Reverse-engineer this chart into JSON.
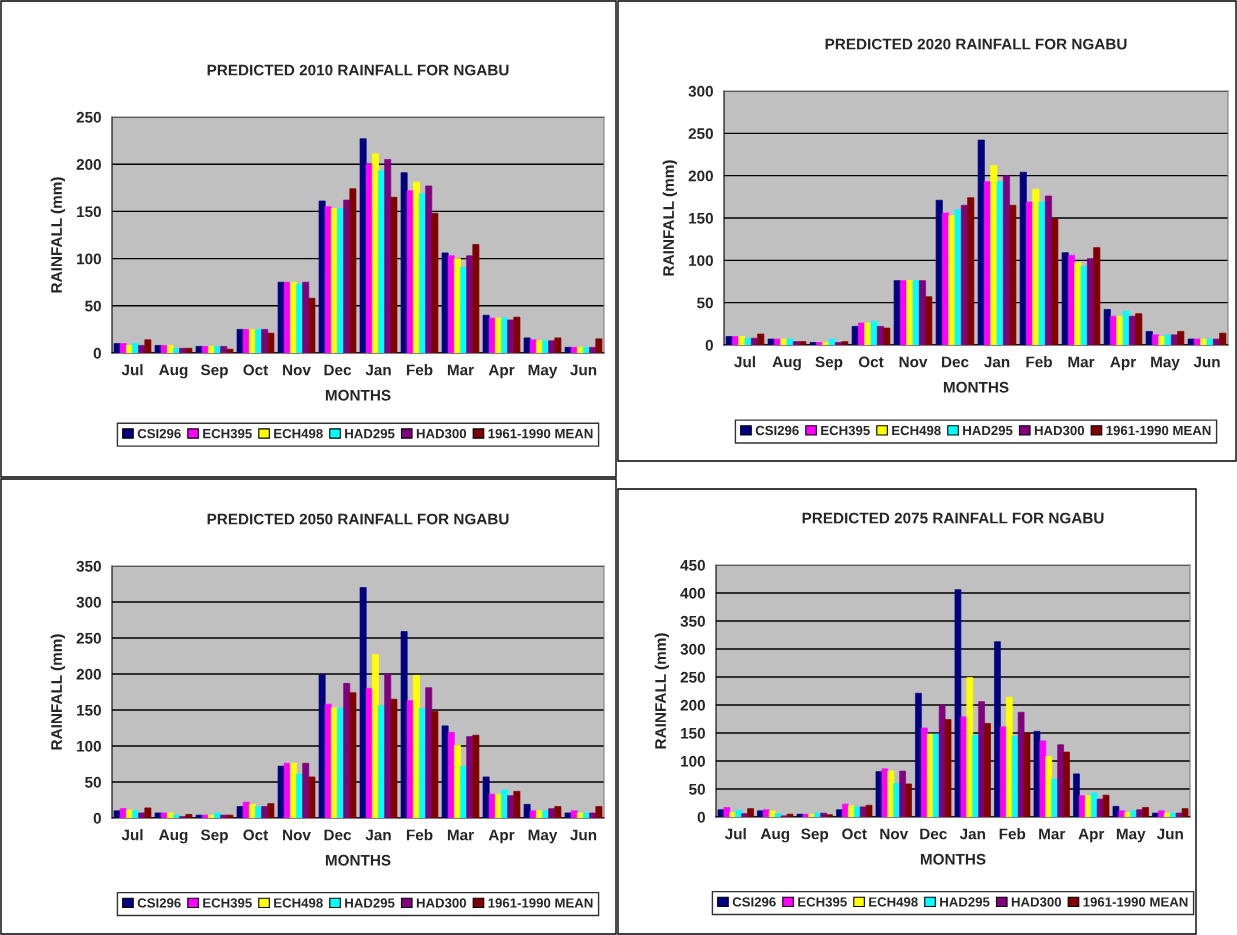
{
  "chart_data": [
    {
      "type": "bar",
      "title": "PREDICTED 2010 RAINFALL FOR NGABU",
      "xlabel": "MONTHS",
      "ylabel": "RAINFALL (mm)",
      "categories": [
        "Jul",
        "Aug",
        "Sep",
        "Oct",
        "Nov",
        "Dec",
        "Jan",
        "Feb",
        "Mar",
        "Apr",
        "May",
        "Jun"
      ],
      "ylim": [
        0,
        250
      ],
      "yticks": [
        0,
        50,
        100,
        150,
        200,
        250
      ],
      "grid": "y",
      "legend": "bottom",
      "series": [
        {
          "name": "CSI296",
          "color": "#000080",
          "values": [
            10,
            8,
            7,
            25,
            75,
            161,
            227,
            191,
            106,
            40,
            16,
            6
          ]
        },
        {
          "name": "ECH395",
          "color": "#ff00ff",
          "values": [
            10,
            8,
            7,
            25,
            75,
            155,
            200,
            172,
            103,
            37,
            14,
            6
          ]
        },
        {
          "name": "ECH498",
          "color": "#ffff00",
          "values": [
            8,
            8,
            7,
            25,
            75,
            153,
            211,
            181,
            100,
            37,
            13,
            6
          ]
        },
        {
          "name": "HAD295",
          "color": "#00ffff",
          "values": [
            10,
            5,
            7,
            25,
            73,
            153,
            193,
            169,
            91,
            37,
            13,
            6
          ]
        },
        {
          "name": "HAD300",
          "color": "#800080",
          "values": [
            8,
            5,
            7,
            25,
            75,
            162,
            205,
            177,
            103,
            35,
            13,
            6
          ]
        },
        {
          "name": "1961-1990 MEAN",
          "color": "#800000",
          "values": [
            14,
            5,
            4,
            21,
            58,
            174,
            165,
            148,
            115,
            38,
            16,
            15
          ]
        }
      ]
    },
    {
      "type": "bar",
      "title": "PREDICTED 2020 RAINFALL FOR NGABU",
      "xlabel": "MONTHS",
      "ylabel": "RAINFALL (mm)",
      "categories": [
        "Jul",
        "Aug",
        "Sep",
        "Oct",
        "Nov",
        "Dec",
        "Jan",
        "Feb",
        "Mar",
        "Apr",
        "May",
        "Jun"
      ],
      "ylim": [
        0,
        300
      ],
      "yticks": [
        0,
        50,
        100,
        150,
        200,
        250,
        300
      ],
      "grid": "y",
      "legend": "bottom",
      "series": [
        {
          "name": "CSI296",
          "color": "#000080",
          "values": [
            10,
            7,
            3,
            22,
            76,
            171,
            242,
            204,
            109,
            42,
            16,
            7
          ]
        },
        {
          "name": "ECH395",
          "color": "#ff00ff",
          "values": [
            10,
            7,
            3,
            26,
            76,
            156,
            193,
            169,
            106,
            34,
            12,
            7
          ]
        },
        {
          "name": "ECH498",
          "color": "#ffff00",
          "values": [
            10,
            7,
            3,
            26,
            76,
            153,
            212,
            184,
            97,
            34,
            10,
            7
          ]
        },
        {
          "name": "HAD295",
          "color": "#00ffff",
          "values": [
            8,
            7,
            7,
            28,
            76,
            160,
            193,
            169,
            93,
            40,
            12,
            7
          ]
        },
        {
          "name": "HAD300",
          "color": "#800080",
          "values": [
            8,
            4,
            3,
            22,
            76,
            165,
            200,
            176,
            102,
            34,
            12,
            7
          ]
        },
        {
          "name": "1961-1990 MEAN",
          "color": "#800000",
          "values": [
            13,
            4,
            4,
            20,
            57,
            174,
            165,
            149,
            115,
            37,
            16,
            14
          ]
        }
      ]
    },
    {
      "type": "bar",
      "title": "PREDICTED 2050 RAINFALL FOR NGABU",
      "xlabel": "MONTHS",
      "ylabel": "RAINFALL (mm)",
      "categories": [
        "Jul",
        "Aug",
        "Sep",
        "Oct",
        "Nov",
        "Dec",
        "Jan",
        "Feb",
        "Mar",
        "Apr",
        "May",
        "Jun"
      ],
      "ylim": [
        0,
        350
      ],
      "yticks": [
        0,
        50,
        100,
        150,
        200,
        250,
        300,
        350
      ],
      "grid": "y",
      "legend": "bottom",
      "series": [
        {
          "name": "CSI296",
          "color": "#000080",
          "values": [
            10,
            7,
            4,
            16,
            72,
            199,
            320,
            259,
            128,
            57,
            19,
            7
          ]
        },
        {
          "name": "ECH395",
          "color": "#ff00ff",
          "values": [
            13,
            7,
            4,
            22,
            76,
            158,
            180,
            163,
            119,
            33,
            10,
            10
          ]
        },
        {
          "name": "ECH498",
          "color": "#ffff00",
          "values": [
            11,
            7,
            4,
            19,
            76,
            153,
            227,
            198,
            101,
            33,
            10,
            7
          ]
        },
        {
          "name": "HAD295",
          "color": "#00ffff",
          "values": [
            10,
            4,
            7,
            16,
            61,
            153,
            156,
            152,
            72,
            39,
            10,
            7
          ]
        },
        {
          "name": "HAD300",
          "color": "#800080",
          "values": [
            7,
            2,
            4,
            16,
            76,
            187,
            200,
            181,
            113,
            31,
            13,
            7
          ]
        },
        {
          "name": "1961-1990 MEAN",
          "color": "#800000",
          "values": [
            14,
            5,
            4,
            20,
            57,
            174,
            165,
            148,
            115,
            37,
            16,
            16
          ]
        }
      ]
    },
    {
      "type": "bar",
      "title": "PREDICTED 2075 RAINFALL FOR NGABU",
      "xlabel": "MONTHS",
      "ylabel": "RAINFALL (mm)",
      "categories": [
        "Jul",
        "Aug",
        "Sep",
        "Oct",
        "Nov",
        "Dec",
        "Jan",
        "Feb",
        "Mar",
        "Apr",
        "May",
        "Jun"
      ],
      "ylim": [
        0,
        450
      ],
      "yticks": [
        0,
        50,
        100,
        150,
        200,
        250,
        300,
        350,
        400,
        450
      ],
      "grid": "y",
      "legend": "bottom",
      "series": [
        {
          "name": "CSI296",
          "color": "#000080",
          "values": [
            13,
            11,
            5,
            13,
            81,
            221,
            406,
            313,
            153,
            77,
            19,
            7
          ]
        },
        {
          "name": "ECH395",
          "color": "#ff00ff",
          "values": [
            17,
            13,
            5,
            23,
            86,
            159,
            179,
            161,
            136,
            38,
            11,
            11
          ]
        },
        {
          "name": "ECH498",
          "color": "#ffff00",
          "values": [
            8,
            11,
            5,
            20,
            82,
            148,
            249,
            214,
            108,
            38,
            8,
            7
          ]
        },
        {
          "name": "HAD295",
          "color": "#00ffff",
          "values": [
            12,
            6,
            7,
            18,
            60,
            148,
            146,
            144,
            68,
            43,
            11,
            7
          ]
        },
        {
          "name": "HAD300",
          "color": "#800080",
          "values": [
            6,
            2,
            7,
            18,
            82,
            200,
            206,
            187,
            129,
            32,
            13,
            7
          ]
        },
        {
          "name": "1961-1990 MEAN",
          "color": "#800000",
          "values": [
            15,
            5,
            4,
            21,
            59,
            174,
            167,
            150,
            116,
            39,
            17,
            15
          ]
        }
      ]
    }
  ]
}
